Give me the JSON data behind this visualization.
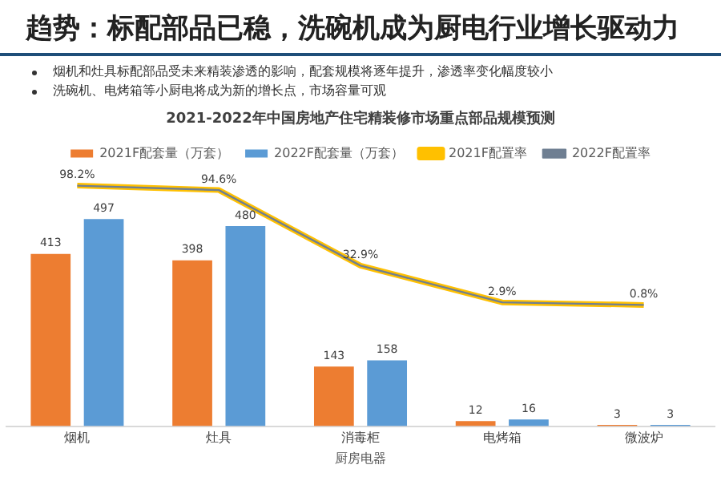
{
  "chart_data": {
    "type": "bar",
    "title": "趋势：标配部品已稳，洗碗机成为厨电行业增长驱动力",
    "subtitle": "2021-2022年中国房地产住宅精装修市场重点部品规模预测",
    "xlabel": "厨房电器",
    "annotations": [
      "烟机和灶具标配部品受未来精装渗透的影响，配套规模将逐年提升，渗透率变化幅度较小",
      "洗碗机、电烤箱等小厨电将成为新的增长点，市场容量可观"
    ],
    "categories": [
      "烟机",
      "灶具",
      "消毒柜",
      "电烤箱",
      "微波炉"
    ],
    "series": [
      {
        "name": "2021F配套量（万套）",
        "color": "#ed7d31",
        "values": [
          413,
          398,
          143,
          12,
          3
        ]
      },
      {
        "name": "2022F配套量（万套）",
        "color": "#5b9bd5",
        "values": [
          497,
          480,
          158,
          16,
          3
        ]
      },
      {
        "name": "2021F配置率",
        "type": "line",
        "axis": "y2",
        "color": "#ffc000",
        "values": [
          98.2,
          94.6,
          32.9,
          2.9,
          0.8
        ],
        "value_labels": [
          null,
          null,
          null,
          null,
          null
        ]
      },
      {
        "name": "2022F配置率",
        "type": "line",
        "axis": "y2",
        "color": "#6f7f92",
        "values": [
          98.2,
          94.6,
          32.9,
          2.9,
          0.8
        ],
        "value_labels": [
          "98.2%",
          "94.6%",
          "32.9%",
          "2.9%",
          "0.8%"
        ]
      }
    ],
    "data_labels": true,
    "legend": "top",
    "grid": false,
    "marker": "none"
  }
}
